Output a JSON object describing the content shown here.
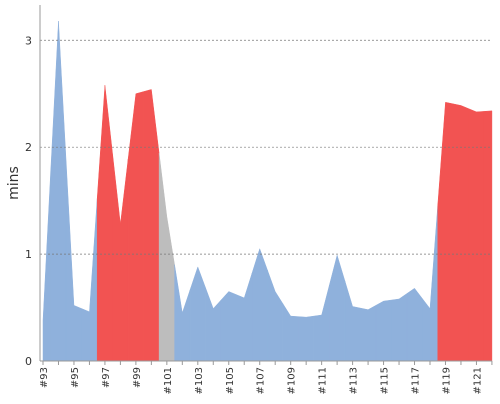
{
  "chart_data": {
    "type": "area",
    "ylabel": "mins",
    "categories": [
      "#93",
      null,
      "#95",
      null,
      "#97",
      null,
      "#99",
      null,
      "#101",
      null,
      "#103",
      null,
      "#105",
      null,
      "#107",
      null,
      "#109",
      null,
      "#111",
      null,
      "#113",
      null,
      "#115",
      null,
      "#117",
      null,
      "#119",
      null,
      "#121",
      null
    ],
    "values": [
      0.38,
      3.18,
      0.52,
      0.46,
      2.58,
      1.28,
      2.5,
      2.54,
      1.35,
      0.45,
      0.88,
      0.49,
      0.65,
      0.59,
      1.05,
      0.65,
      0.42,
      0.41,
      0.43,
      0.99,
      0.51,
      0.48,
      0.56,
      0.58,
      0.68,
      0.49,
      2.42,
      2.39,
      2.33,
      2.34
    ],
    "colors": [
      "#8fb1dc",
      "#8fb1dc",
      "#8fb1dc",
      "#8fb1dc",
      "#f25352",
      "#f25352",
      "#f25352",
      "#f25352",
      "#bdbdbd",
      "#8fb1dc",
      "#8fb1dc",
      "#8fb1dc",
      "#8fb1dc",
      "#8fb1dc",
      "#8fb1dc",
      "#8fb1dc",
      "#8fb1dc",
      "#8fb1dc",
      "#8fb1dc",
      "#8fb1dc",
      "#8fb1dc",
      "#8fb1dc",
      "#8fb1dc",
      "#8fb1dc",
      "#8fb1dc",
      "#8fb1dc",
      "#f25352",
      "#f25352",
      "#f25352",
      "#f25352"
    ],
    "ylim": [
      0,
      3.33
    ],
    "yticks": [
      0,
      1,
      2,
      3
    ],
    "grid": true
  }
}
